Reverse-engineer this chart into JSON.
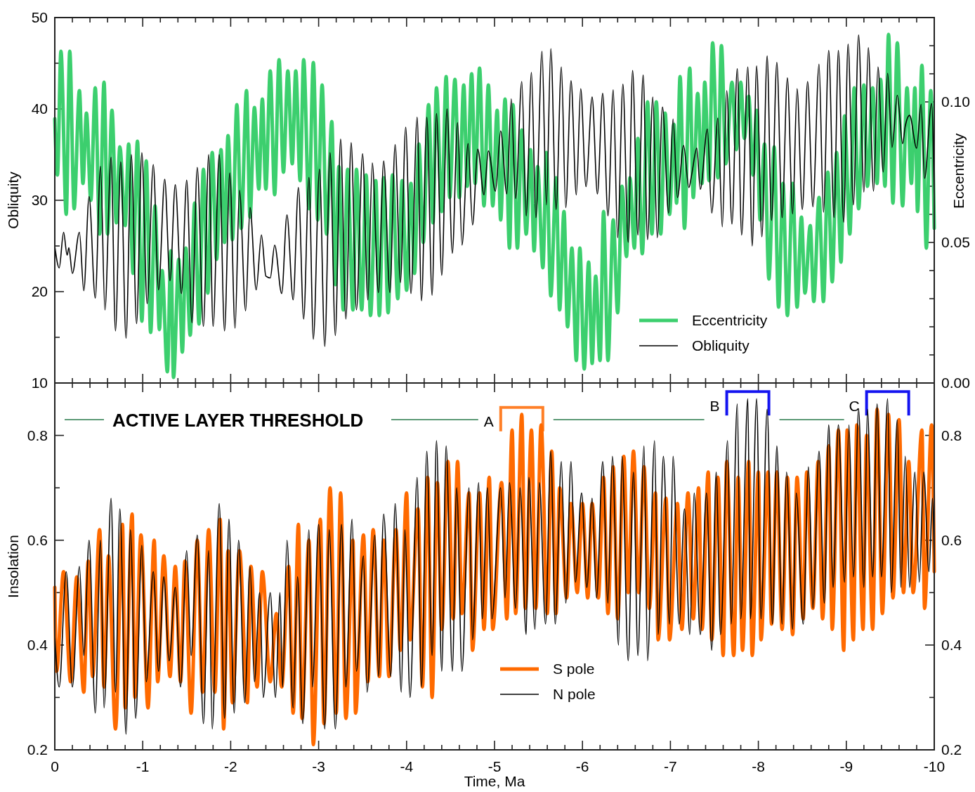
{
  "chart_data": [
    {
      "type": "line",
      "xlim": [
        0,
        -10
      ],
      "xticks": [
        {
          "value": 0,
          "label": null
        },
        {
          "value": -0.2,
          "label": null
        },
        {
          "value": -0.4,
          "label": null
        },
        {
          "value": -0.6,
          "label": null
        },
        {
          "value": -0.8,
          "label": null
        },
        {
          "value": -1,
          "label": null
        },
        {
          "value": -1.2,
          "label": null
        },
        {
          "value": -1.4,
          "label": null
        },
        {
          "value": -1.6,
          "label": null
        },
        {
          "value": -1.8,
          "label": null
        },
        {
          "value": -2,
          "label": null
        },
        {
          "value": -2.2,
          "label": null
        },
        {
          "value": -2.4,
          "label": null
        },
        {
          "value": -2.6,
          "label": null
        },
        {
          "value": -2.8,
          "label": null
        },
        {
          "value": -3,
          "label": null
        },
        {
          "value": -3.2,
          "label": null
        },
        {
          "value": -3.4,
          "label": null
        },
        {
          "value": -3.6,
          "label": null
        },
        {
          "value": -3.8,
          "label": null
        },
        {
          "value": -4,
          "label": null
        },
        {
          "value": -4.2,
          "label": null
        },
        {
          "value": -4.4,
          "label": null
        },
        {
          "value": -4.6,
          "label": null
        },
        {
          "value": -4.8,
          "label": null
        },
        {
          "value": -5,
          "label": null
        },
        {
          "value": -5.2,
          "label": null
        },
        {
          "value": -5.4,
          "label": null
        },
        {
          "value": -5.6,
          "label": null
        },
        {
          "value": -5.8,
          "label": null
        },
        {
          "value": -6,
          "label": null
        },
        {
          "value": -6.2,
          "label": null
        },
        {
          "value": -6.4,
          "label": null
        },
        {
          "value": -6.6,
          "label": null
        },
        {
          "value": -6.8,
          "label": null
        },
        {
          "value": -7,
          "label": null
        },
        {
          "value": -7.2,
          "label": null
        },
        {
          "value": -7.4,
          "label": null
        },
        {
          "value": -7.6,
          "label": null
        },
        {
          "value": -7.8,
          "label": null
        },
        {
          "value": -8,
          "label": null
        },
        {
          "value": -8.2,
          "label": null
        },
        {
          "value": -8.4,
          "label": null
        },
        {
          "value": -8.6,
          "label": null
        },
        {
          "value": -8.8,
          "label": null
        },
        {
          "value": -9,
          "label": null
        },
        {
          "value": -9.2,
          "label": null
        },
        {
          "value": -9.4,
          "label": null
        },
        {
          "value": -9.6,
          "label": null
        },
        {
          "value": -9.8,
          "label": null
        },
        {
          "value": -10,
          "label": null
        }
      ],
      "ylim": [
        10,
        50
      ],
      "yticks": [
        10,
        {
          "value": 15,
          "label": null
        },
        20,
        {
          "value": 25,
          "label": null
        },
        30,
        {
          "value": 35,
          "label": null
        },
        40,
        {
          "value": 45,
          "label": null
        },
        50
      ],
      "y2lim": [
        0,
        0.13
      ],
      "y2ticks": [
        {
          "value": 0,
          "label": "0.00"
        },
        {
          "value": 0.01,
          "label": null
        },
        {
          "value": 0.02,
          "label": null
        },
        {
          "value": 0.03,
          "label": null
        },
        {
          "value": 0.04,
          "label": null
        },
        {
          "value": 0.05,
          "label": "0.05"
        },
        {
          "value": 0.06,
          "label": null
        },
        {
          "value": 0.07,
          "label": null
        },
        {
          "value": 0.08,
          "label": null
        },
        {
          "value": 0.09,
          "label": null
        },
        {
          "value": 0.1,
          "label": "0.10"
        },
        {
          "value": 0.11,
          "label": null
        },
        {
          "value": 0.12,
          "label": null
        }
      ],
      "ylabel": "Obliquity",
      "y2label": "Eccentricity",
      "tick_labels": "y",
      "legend": "bottom right",
      "series": [
        {
          "name": "Eccentricity",
          "color": "#3ccf6e",
          "axis": "y2",
          "x": [
            0,
            -0.03,
            -0.07,
            -0.13,
            -0.17,
            -0.22,
            -0.28,
            -0.32,
            -0.36,
            -0.41,
            -0.46,
            -0.51,
            -0.56,
            -0.6,
            -0.65,
            -0.7,
            -0.74,
            -0.8,
            -0.84,
            -0.89,
            -0.94,
            -0.99,
            -1.04,
            -1.09,
            -1.14,
            -1.19,
            -1.22,
            -1.28,
            -1.32,
            -1.35,
            -1.41,
            -1.45,
            -1.49,
            -1.54,
            -1.59,
            -1.64,
            -1.69,
            -1.74,
            -1.79,
            -1.84,
            -1.89,
            -1.93,
            -1.97,
            -2.02,
            -2.07,
            -2.12,
            -2.18,
            -2.22,
            -2.27,
            -2.32,
            -2.36,
            -2.4,
            -2.45,
            -2.5,
            -2.55,
            -2.6,
            -2.65,
            -2.7,
            -2.74,
            -2.79,
            -2.83,
            -2.89,
            -2.94,
            -2.99,
            -3.04,
            -3.09,
            -3.15,
            -3.19,
            -3.23,
            -3.28,
            -3.33,
            -3.39,
            -3.43,
            -3.49,
            -3.54,
            -3.59,
            -3.65,
            -3.69,
            -3.74,
            -3.79,
            -3.84,
            -3.9,
            -3.95,
            -4,
            -4.05,
            -4.09,
            -4.14,
            -4.19,
            -4.25,
            -4.3,
            -4.34,
            -4.4,
            -4.45,
            -4.49,
            -4.55,
            -4.6,
            -4.65,
            -4.69,
            -4.74,
            -4.78,
            -4.83,
            -4.88,
            -4.93,
            -4.98,
            -5.03,
            -5.07,
            -5.12,
            -5.17,
            -5.21,
            -5.26,
            -5.31,
            -5.36,
            -5.41,
            -5.45,
            -5.49,
            -5.55,
            -5.59,
            -5.64,
            -5.7,
            -5.74,
            -5.79,
            -5.83,
            -5.88,
            -5.93,
            -5.97,
            -6.02,
            -6.07,
            -6.11,
            -6.15,
            -6.2,
            -6.24,
            -6.29,
            -6.35,
            -6.4,
            -6.45,
            -6.5,
            -6.54,
            -6.59,
            -6.63,
            -6.68,
            -6.74,
            -6.79,
            -6.84,
            -6.89,
            -6.94,
            -6.99,
            -7.04,
            -7.07,
            -7.11,
            -7.16,
            -7.22,
            -7.26,
            -7.31,
            -7.36,
            -7.39,
            -7.44,
            -7.48,
            -7.54,
            -7.58,
            -7.63,
            -7.7,
            -7.75,
            -7.8,
            -7.84,
            -7.89,
            -7.94,
            -7.98,
            -8.02,
            -8.07,
            -8.12,
            -8.18,
            -8.23,
            -8.28,
            -8.33,
            -8.39,
            -8.44,
            -8.49,
            -8.53,
            -8.59,
            -8.63,
            -8.69,
            -8.74,
            -8.79,
            -8.84,
            -8.89,
            -8.94,
            -8.98,
            -9.04,
            -9.09,
            -9.14,
            -9.2,
            -9.24,
            -9.3,
            -9.35,
            -9.39,
            -9.44,
            -9.48,
            -9.53,
            -9.58,
            -9.64,
            -9.69,
            -9.74,
            -9.78,
            -9.81,
            -9.86,
            -9.91,
            -9.96,
            -10
          ],
          "values": [
            0.094,
            0.074,
            0.118,
            0.06,
            0.118,
            0.062,
            0.104,
            0.071,
            0.096,
            0.065,
            0.105,
            0.053,
            0.107,
            0.053,
            0.097,
            0.057,
            0.084,
            0.056,
            0.085,
            0.039,
            0.086,
            0.022,
            0.079,
            0.018,
            0.063,
            0.019,
            0.04,
            0.004,
            0.047,
            0.002,
            0.044,
            0.011,
            0.048,
            0.017,
            0.064,
            0.021,
            0.076,
            0.032,
            0.082,
            0.044,
            0.083,
            0.05,
            0.088,
            0.051,
            0.099,
            0.055,
            0.104,
            0.059,
            0.098,
            0.069,
            0.101,
            0.069,
            0.111,
            0.067,
            0.115,
            0.075,
            0.111,
            0.078,
            0.111,
            0.072,
            0.115,
            0.062,
            0.114,
            0.058,
            0.106,
            0.053,
            0.093,
            0.035,
            0.077,
            0.026,
            0.076,
            0.026,
            0.076,
            0.026,
            0.074,
            0.024,
            0.072,
            0.024,
            0.073,
            0.025,
            0.074,
            0.03,
            0.072,
            0.033,
            0.071,
            0.039,
            0.085,
            0.05,
            0.099,
            0.057,
            0.105,
            0.061,
            0.109,
            0.066,
            0.108,
            0.066,
            0.106,
            0.07,
            0.11,
            0.071,
            0.112,
            0.063,
            0.106,
            0.063,
            0.097,
            0.058,
            0.101,
            0.048,
            0.099,
            0.048,
            0.09,
            0.053,
            0.083,
            0.047,
            0.077,
            0.041,
            0.082,
            0.031,
            0.073,
            0.026,
            0.061,
            0.02,
            0.048,
            0.008,
            0.048,
            0.005,
            0.043,
            0.007,
            0.038,
            0.008,
            0.061,
            0.008,
            0.058,
            0.025,
            0.07,
            0.045,
            0.073,
            0.048,
            0.087,
            0.046,
            0.1,
            0.053,
            0.1,
            0.053,
            0.096,
            0.06,
            0.092,
            0.064,
            0.109,
            0.055,
            0.112,
            0.066,
            0.103,
            0.071,
            0.107,
            0.072,
            0.121,
            0.073,
            0.12,
            0.078,
            0.107,
            0.083,
            0.107,
            0.087,
            0.102,
            0.074,
            0.097,
            0.058,
            0.085,
            0.037,
            0.084,
            0.027,
            0.071,
            0.024,
            0.071,
            0.027,
            0.059,
            0.032,
            0.056,
            0.029,
            0.066,
            0.029,
            0.075,
            0.036,
            0.082,
            0.043,
            0.095,
            0.053,
            0.105,
            0.062,
            0.106,
            0.07,
            0.105,
            0.071,
            0.108,
            0.07,
            0.124,
            0.064,
            0.121,
            0.063,
            0.105,
            0.071,
            0.105,
            0.061,
            0.113,
            0.048,
            0.104,
            0.055
          ]
        },
        {
          "name": "Obliquity",
          "color": "#000000",
          "axis": "y",
          "x": [
            0,
            -0.05,
            -0.1,
            -0.14,
            -0.16,
            -0.2,
            -0.28,
            -0.33,
            -0.39,
            -0.46,
            -0.52,
            -0.57,
            -0.64,
            -0.69,
            -0.75,
            -0.81,
            -0.87,
            -0.93,
            -0.99,
            -1.05,
            -1.12,
            -1.18,
            -1.25,
            -1.31,
            -1.37,
            -1.44,
            -1.5,
            -1.56,
            -1.62,
            -1.69,
            -1.75,
            -1.8,
            -1.87,
            -1.93,
            -1.99,
            -2.05,
            -2.1,
            -2.17,
            -2.22,
            -2.29,
            -2.35,
            -2.4,
            -2.45,
            -2.5,
            -2.58,
            -2.64,
            -2.71,
            -2.77,
            -2.83,
            -2.89,
            -2.94,
            -3.01,
            -3.07,
            -3.13,
            -3.19,
            -3.25,
            -3.31,
            -3.37,
            -3.43,
            -3.5,
            -3.56,
            -3.61,
            -3.68,
            -3.74,
            -3.81,
            -3.87,
            -3.93,
            -3.99,
            -4.05,
            -4.12,
            -4.17,
            -4.23,
            -4.29,
            -4.34,
            -4.4,
            -4.46,
            -4.52,
            -4.58,
            -4.63,
            -4.7,
            -4.75,
            -4.81,
            -4.88,
            -4.93,
            -5.01,
            -5.07,
            -5.14,
            -5.19,
            -5.24,
            -5.31,
            -5.36,
            -5.42,
            -5.47,
            -5.54,
            -5.59,
            -5.64,
            -5.7,
            -5.76,
            -5.81,
            -5.87,
            -5.93,
            -5.98,
            -6.04,
            -6.11,
            -6.17,
            -6.23,
            -6.29,
            -6.35,
            -6.4,
            -6.46,
            -6.52,
            -6.57,
            -6.63,
            -6.69,
            -6.74,
            -6.8,
            -6.85,
            -6.91,
            -6.98,
            -7.03,
            -7.08,
            -7.15,
            -7.21,
            -7.24,
            -7.3,
            -7.34,
            -7.42,
            -7.47,
            -7.54,
            -7.59,
            -7.64,
            -7.7,
            -7.76,
            -7.81,
            -7.88,
            -7.93,
            -7.98,
            -8.04,
            -8.1,
            -8.15,
            -8.21,
            -8.27,
            -8.33,
            -8.39,
            -8.44,
            -8.5,
            -8.56,
            -8.62,
            -8.69,
            -8.74,
            -8.8,
            -8.86,
            -8.91,
            -8.97,
            -9.02,
            -9.08,
            -9.14,
            -9.2,
            -9.25,
            -9.31,
            -9.36,
            -9.42,
            -9.47,
            -9.52,
            -9.58,
            -9.64,
            -9.67,
            -9.72,
            -9.8,
            -9.85,
            -9.89,
            -9.97,
            -10
          ],
          "values": [
            25,
            22.6,
            26.5,
            24,
            24.8,
            22,
            26.5,
            20.1,
            30.4,
            19.3,
            33.7,
            18,
            34.7,
            15.7,
            34.2,
            14.9,
            35,
            16.5,
            35.2,
            18.7,
            33.9,
            20.2,
            32.3,
            21.2,
            31.7,
            19.8,
            32.2,
            16.6,
            33.6,
            16.2,
            35,
            16.2,
            35,
            15.7,
            33,
            16,
            31.1,
            17.9,
            29.2,
            20.2,
            26.2,
            21.7,
            21.5,
            25.1,
            19.8,
            28.4,
            19.1,
            31.4,
            17,
            32.5,
            14.8,
            33.4,
            14,
            35.2,
            15.2,
            36.7,
            17,
            36.3,
            18,
            35.1,
            19.1,
            34.1,
            19.9,
            34.3,
            19.9,
            36.1,
            21,
            38,
            19.8,
            39.1,
            19,
            39.1,
            19.6,
            39.5,
            21.8,
            40,
            24.2,
            38.5,
            25.1,
            36.2,
            27.3,
            35.6,
            30.6,
            35.4,
            31,
            37.6,
            30.7,
            41.1,
            30.2,
            43,
            28.3,
            44,
            28.1,
            46.3,
            29.5,
            46.6,
            29,
            44.6,
            29.2,
            43.1,
            30.6,
            42.2,
            31.5,
            41.3,
            30.7,
            41.7,
            28.3,
            42.1,
            25.9,
            42.7,
            25.4,
            44.2,
            26.2,
            43.7,
            25.7,
            41.3,
            25.9,
            40.2,
            28.6,
            38.9,
            30.3,
            36,
            31.4,
            32.7,
            35.7,
            31.2,
            37.8,
            28.6,
            39,
            27.1,
            42,
            27.4,
            44.4,
            26.2,
            44.6,
            25,
            44.7,
            26,
            45.8,
            27.8,
            45.1,
            28.1,
            43.4,
            28.5,
            42.2,
            29,
            43,
            29.3,
            44.9,
            28.7,
            46.4,
            28.1,
            46.4,
            27.6,
            47.1,
            29.5,
            48.1,
            30.9,
            46.7,
            31,
            44.6,
            33.1,
            43.9,
            35.8,
            41.5,
            36.2,
            38.1,
            39.3,
            35.7,
            40.5,
            32.4,
            40.6,
            29.7
          ]
        }
      ]
    },
    {
      "type": "line",
      "xlim": [
        0,
        -10
      ],
      "xticks": [
        0,
        {
          "value": -0.2,
          "label": null
        },
        {
          "value": -0.4,
          "label": null
        },
        {
          "value": -0.6,
          "label": null
        },
        {
          "value": -0.8,
          "label": null
        },
        -1,
        {
          "value": -1.2,
          "label": null
        },
        {
          "value": -1.4,
          "label": null
        },
        {
          "value": -1.6,
          "label": null
        },
        {
          "value": -1.8,
          "label": null
        },
        -2,
        {
          "value": -2.2,
          "label": null
        },
        {
          "value": -2.4,
          "label": null
        },
        {
          "value": -2.6,
          "label": null
        },
        {
          "value": -2.8,
          "label": null
        },
        -3,
        {
          "value": -3.2,
          "label": null
        },
        {
          "value": -3.4,
          "label": null
        },
        {
          "value": -3.6,
          "label": null
        },
        {
          "value": -3.8,
          "label": null
        },
        -4,
        {
          "value": -4.2,
          "label": null
        },
        {
          "value": -4.4,
          "label": null
        },
        {
          "value": -4.6,
          "label": null
        },
        {
          "value": -4.8,
          "label": null
        },
        -5,
        {
          "value": -5.2,
          "label": null
        },
        {
          "value": -5.4,
          "label": null
        },
        {
          "value": -5.6,
          "label": null
        },
        {
          "value": -5.8,
          "label": null
        },
        -6,
        {
          "value": -6.2,
          "label": null
        },
        {
          "value": -6.4,
          "label": null
        },
        {
          "value": -6.6,
          "label": null
        },
        {
          "value": -6.8,
          "label": null
        },
        -7,
        {
          "value": -7.2,
          "label": null
        },
        {
          "value": -7.4,
          "label": null
        },
        {
          "value": -7.6,
          "label": null
        },
        {
          "value": -7.8,
          "label": null
        },
        -8,
        {
          "value": -8.2,
          "label": null
        },
        {
          "value": -8.4,
          "label": null
        },
        {
          "value": -8.6,
          "label": null
        },
        {
          "value": -8.8,
          "label": null
        },
        -9,
        {
          "value": -9.2,
          "label": null
        },
        {
          "value": -9.4,
          "label": null
        },
        {
          "value": -9.6,
          "label": null
        },
        {
          "value": -9.8,
          "label": null
        },
        -10
      ],
      "ylim": [
        0.2,
        0.9
      ],
      "yticks": [
        0.2,
        {
          "value": 0.3,
          "label": null
        },
        0.4,
        {
          "value": 0.5,
          "label": null
        },
        0.6,
        {
          "value": 0.7,
          "label": null
        },
        0.8
      ],
      "y2lim": [
        0.2,
        0.9
      ],
      "y2ticks": [
        0.2,
        {
          "value": 0.3,
          "label": null
        },
        0.4,
        {
          "value": 0.5,
          "label": null
        },
        0.6,
        {
          "value": 0.7,
          "label": null
        },
        0.8
      ],
      "xlabel": "Time, Ma",
      "ylabel": "Insolation",
      "legend": "bottom",
      "ref_lines": [
        {
          "axis": "y",
          "value": 0.83,
          "label": "ACTIVE LAYER THRESHOLD",
          "color": "#2e7d4f"
        }
      ],
      "annotations": [
        {
          "text": "A",
          "x": -5.31,
          "y": 0.84
        },
        {
          "text": "B",
          "x": -7.88,
          "y": 0.87
        },
        {
          "text": "C",
          "x": -9.47,
          "y": 0.87
        }
      ],
      "series": [
        {
          "name": "S pole",
          "color": "#ff6a00",
          "x": [
            0,
            -0.02,
            -0.1,
            -0.18,
            -0.25,
            -0.33,
            -0.38,
            -0.43,
            -0.51,
            -0.56,
            -0.61,
            -0.69,
            -0.77,
            -0.8,
            -0.88,
            -0.91,
            -0.98,
            -1.06,
            -1.13,
            -1.17,
            -1.24,
            -1.31,
            -1.37,
            -1.43,
            -1.48,
            -1.55,
            -1.62,
            -1.68,
            -1.75,
            -1.82,
            -1.88,
            -1.92,
            -1.97,
            -2.02,
            -2.1,
            -2.19,
            -2.23,
            -2.3,
            -2.36,
            -2.45,
            -2.52,
            -2.58,
            -2.66,
            -2.71,
            -2.77,
            -2.81,
            -2.89,
            -2.94,
            -3.02,
            -3.06,
            -3.13,
            -3.2,
            -3.25,
            -3.31,
            -3.39,
            -3.42,
            -3.51,
            -3.56,
            -3.62,
            -3.69,
            -3.74,
            -3.8,
            -3.88,
            -3.93,
            -4,
            -4.04,
            -4.13,
            -4.18,
            -4.24,
            -4.29,
            -4.35,
            -4.4,
            -4.47,
            -4.53,
            -4.58,
            -4.63,
            -4.71,
            -4.75,
            -4.83,
            -4.88,
            -4.94,
            -4.98,
            -5.08,
            -5.14,
            -5.2,
            -5.24,
            -5.31,
            -5.35,
            -5.42,
            -5.47,
            -5.53,
            -5.6,
            -5.65,
            -5.7,
            -5.74,
            -5.82,
            -5.87,
            -5.94,
            -6,
            -6.06,
            -6.11,
            -6.18,
            -6.24,
            -6.29,
            -6.35,
            -6.4,
            -6.47,
            -6.52,
            -6.58,
            -6.64,
            -6.7,
            -6.76,
            -6.83,
            -6.86,
            -6.95,
            -6.99,
            -7.08,
            -7.13,
            -7.2,
            -7.26,
            -7.32,
            -7.36,
            -7.43,
            -7.47,
            -7.54,
            -7.6,
            -7.64,
            -7.72,
            -7.77,
            -7.82,
            -7.89,
            -7.93,
            -8,
            -8.03,
            -8.11,
            -8.15,
            -8.21,
            -8.27,
            -8.33,
            -8.39,
            -8.44,
            -8.51,
            -8.55,
            -8.62,
            -8.68,
            -8.73,
            -8.8,
            -8.84,
            -8.91,
            -8.97,
            -9.01,
            -9.08,
            -9.12,
            -9.19,
            -9.23,
            -9.3,
            -9.35,
            -9.41,
            -9.48,
            -9.53,
            -9.6,
            -9.65,
            -9.71,
            -9.76,
            -9.86,
            -9.89,
            -9.97,
            -10
          ],
          "values": [
            0.51,
            0.35,
            0.54,
            0.33,
            0.53,
            0.31,
            0.56,
            0.34,
            0.62,
            0.32,
            0.57,
            0.24,
            0.63,
            0.28,
            0.65,
            0.3,
            0.61,
            0.28,
            0.6,
            0.33,
            0.57,
            0.34,
            0.55,
            0.33,
            0.56,
            0.27,
            0.6,
            0.31,
            0.62,
            0.31,
            0.64,
            0.24,
            0.58,
            0.29,
            0.58,
            0.29,
            0.55,
            0.32,
            0.54,
            0.33,
            0.46,
            0.32,
            0.55,
            0.27,
            0.63,
            0.26,
            0.6,
            0.21,
            0.64,
            0.25,
            0.7,
            0.27,
            0.69,
            0.26,
            0.6,
            0.27,
            0.61,
            0.33,
            0.62,
            0.34,
            0.6,
            0.34,
            0.62,
            0.39,
            0.69,
            0.41,
            0.66,
            0.32,
            0.72,
            0.3,
            0.71,
            0.43,
            0.75,
            0.45,
            0.75,
            0.46,
            0.69,
            0.39,
            0.69,
            0.43,
            0.72,
            0.43,
            0.71,
            0.45,
            0.81,
            0.46,
            0.84,
            0.47,
            0.81,
            0.47,
            0.82,
            0.46,
            0.77,
            0.46,
            0.7,
            0.49,
            0.67,
            0.5,
            0.67,
            0.49,
            0.67,
            0.49,
            0.72,
            0.46,
            0.74,
            0.45,
            0.76,
            0.5,
            0.77,
            0.5,
            0.74,
            0.47,
            0.69,
            0.41,
            0.68,
            0.41,
            0.67,
            0.43,
            0.69,
            0.45,
            0.7,
            0.43,
            0.73,
            0.41,
            0.72,
            0.38,
            0.75,
            0.38,
            0.72,
            0.39,
            0.75,
            0.38,
            0.73,
            0.41,
            0.73,
            0.44,
            0.73,
            0.43,
            0.72,
            0.42,
            0.72,
            0.45,
            0.73,
            0.47,
            0.75,
            0.45,
            0.78,
            0.43,
            0.81,
            0.39,
            0.81,
            0.41,
            0.82,
            0.43,
            0.8,
            0.43,
            0.85,
            0.46,
            0.84,
            0.49,
            0.83,
            0.5,
            0.75,
            0.5,
            0.81,
            0.47,
            0.82,
            0.54
          ]
        },
        {
          "name": "N pole",
          "color": "#000000",
          "x": [
            0,
            -0.05,
            -0.13,
            -0.2,
            -0.28,
            -0.33,
            -0.39,
            -0.46,
            -0.52,
            -0.56,
            -0.64,
            -0.69,
            -0.74,
            -0.81,
            -0.86,
            -0.92,
            -0.99,
            -1.04,
            -1.12,
            -1.18,
            -1.24,
            -1.3,
            -1.37,
            -1.43,
            -1.5,
            -1.55,
            -1.62,
            -1.69,
            -1.75,
            -1.79,
            -1.87,
            -1.93,
            -1.98,
            -2.04,
            -2.09,
            -2.16,
            -2.22,
            -2.27,
            -2.33,
            -2.37,
            -2.45,
            -2.51,
            -2.56,
            -2.59,
            -2.64,
            -2.71,
            -2.76,
            -2.82,
            -2.89,
            -2.93,
            -3,
            -3.07,
            -3.12,
            -3.19,
            -3.26,
            -3.31,
            -3.38,
            -3.43,
            -3.51,
            -3.55,
            -3.64,
            -3.68,
            -3.74,
            -3.82,
            -3.87,
            -3.94,
            -3.98,
            -4.04,
            -4.12,
            -4.17,
            -4.23,
            -4.29,
            -4.34,
            -4.4,
            -4.45,
            -4.52,
            -4.57,
            -4.63,
            -4.71,
            -4.75,
            -4.82,
            -4.86,
            -4.92,
            -4.97,
            -5.07,
            -5.12,
            -5.17,
            -5.24,
            -5.29,
            -5.36,
            -5.39,
            -5.46,
            -5.51,
            -5.58,
            -5.64,
            -5.69,
            -5.76,
            -5.81,
            -5.87,
            -5.92,
            -5.99,
            -6.05,
            -6.11,
            -6.16,
            -6.23,
            -6.29,
            -6.34,
            -6.41,
            -6.45,
            -6.52,
            -6.58,
            -6.63,
            -6.7,
            -6.74,
            -6.82,
            -6.86,
            -6.92,
            -6.99,
            -7.03,
            -7.1,
            -7.16,
            -7.22,
            -7.27,
            -7.34,
            -7.41,
            -7.47,
            -7.52,
            -7.57,
            -7.65,
            -7.69,
            -7.76,
            -7.8,
            -7.88,
            -7.91,
            -7.98,
            -8.03,
            -8.1,
            -8.16,
            -8.21,
            -8.27,
            -8.32,
            -8.39,
            -8.43,
            -8.51,
            -8.57,
            -8.62,
            -8.69,
            -8.75,
            -8.8,
            -8.85,
            -8.91,
            -8.98,
            -9.03,
            -9.08,
            -9.14,
            -9.2,
            -9.24,
            -9.3,
            -9.35,
            -9.4,
            -9.47,
            -9.51,
            -9.58,
            -9.62,
            -9.67,
            -9.72,
            -9.78,
            -9.83,
            -9.88,
            -9.94,
            -9.98,
            -10
          ],
          "values": [
            0.42,
            0.32,
            0.54,
            0.32,
            0.55,
            0.38,
            0.6,
            0.27,
            0.6,
            0.28,
            0.68,
            0.31,
            0.66,
            0.23,
            0.62,
            0.26,
            0.59,
            0.33,
            0.54,
            0.35,
            0.53,
            0.37,
            0.51,
            0.32,
            0.58,
            0.38,
            0.61,
            0.25,
            0.58,
            0.24,
            0.67,
            0.26,
            0.64,
            0.27,
            0.6,
            0.29,
            0.55,
            0.33,
            0.5,
            0.3,
            0.5,
            0.3,
            0.5,
            0.32,
            0.6,
            0.28,
            0.53,
            0.25,
            0.62,
            0.32,
            0.63,
            0.24,
            0.62,
            0.24,
            0.63,
            0.32,
            0.64,
            0.35,
            0.57,
            0.31,
            0.61,
            0.34,
            0.65,
            0.34,
            0.67,
            0.31,
            0.62,
            0.3,
            0.72,
            0.32,
            0.77,
            0.38,
            0.79,
            0.35,
            0.78,
            0.35,
            0.7,
            0.35,
            0.7,
            0.41,
            0.71,
            0.45,
            0.7,
            0.45,
            0.7,
            0.49,
            0.71,
            0.47,
            0.7,
            0.42,
            0.72,
            0.43,
            0.71,
            0.44,
            0.77,
            0.44,
            0.75,
            0.48,
            0.75,
            0.52,
            0.69,
            0.51,
            0.68,
            0.49,
            0.75,
            0.48,
            0.76,
            0.4,
            0.76,
            0.37,
            0.73,
            0.38,
            0.78,
            0.37,
            0.79,
            0.42,
            0.76,
            0.44,
            0.76,
            0.44,
            0.66,
            0.42,
            0.69,
            0.42,
            0.69,
            0.39,
            0.73,
            0.42,
            0.79,
            0.44,
            0.86,
            0.45,
            0.87,
            0.45,
            0.87,
            0.45,
            0.85,
            0.44,
            0.78,
            0.44,
            0.73,
            0.43,
            0.69,
            0.44,
            0.74,
            0.47,
            0.77,
            0.48,
            0.82,
            0.51,
            0.82,
            0.52,
            0.82,
            0.53,
            0.85,
            0.51,
            0.85,
            0.53,
            0.86,
            0.53,
            0.87,
            0.5,
            0.83,
            0.51,
            0.76,
            0.51,
            0.73,
            0.52,
            0.73,
            0.54,
            0.68,
            0.55
          ]
        }
      ]
    }
  ]
}
